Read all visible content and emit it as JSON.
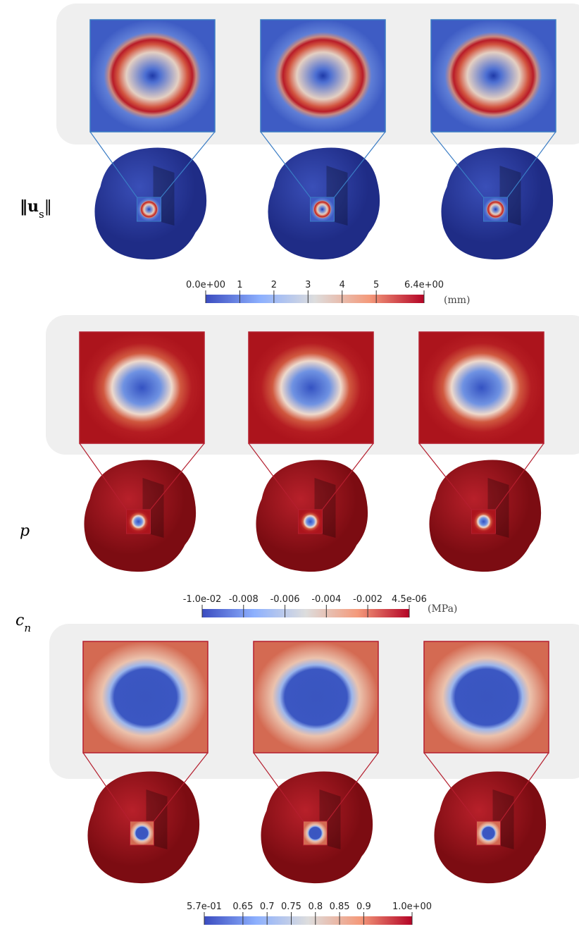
{
  "rows": [
    {
      "label": "‖u",
      "label_sub": "s",
      "label_end": "‖",
      "colorbar": {
        "lim": [
          0,
          6.4
        ],
        "ticks": [
          {
            "value": 0,
            "label": "0.0e+00"
          },
          1,
          2,
          3,
          4,
          5,
          {
            "value": 6.4,
            "label": "6.4e+00"
          }
        ]
      },
      "unit": "(mm)"
    },
    {
      "label": "p",
      "colorbar": {
        "lim": [
          -0.01,
          4.5e-06
        ],
        "ticks": [
          {
            "value": -0.01,
            "label": "-1.0e-02"
          },
          -0.008,
          -0.006,
          -0.004,
          -0.002,
          {
            "value": 4.5e-06,
            "label": "4.5e-06"
          }
        ]
      },
      "unit": "(MPa)"
    },
    {
      "label": "c",
      "label_sub": "n",
      "colorbar": {
        "lim": [
          0.57,
          1
        ],
        "ticks": [
          {
            "value": 0.57,
            "label": "5.7e-01"
          },
          0.65,
          0.7,
          0.75,
          0.8,
          0.85,
          0.9,
          {
            "value": 1,
            "label": "1.0e+00"
          }
        ]
      }
    }
  ]
}
